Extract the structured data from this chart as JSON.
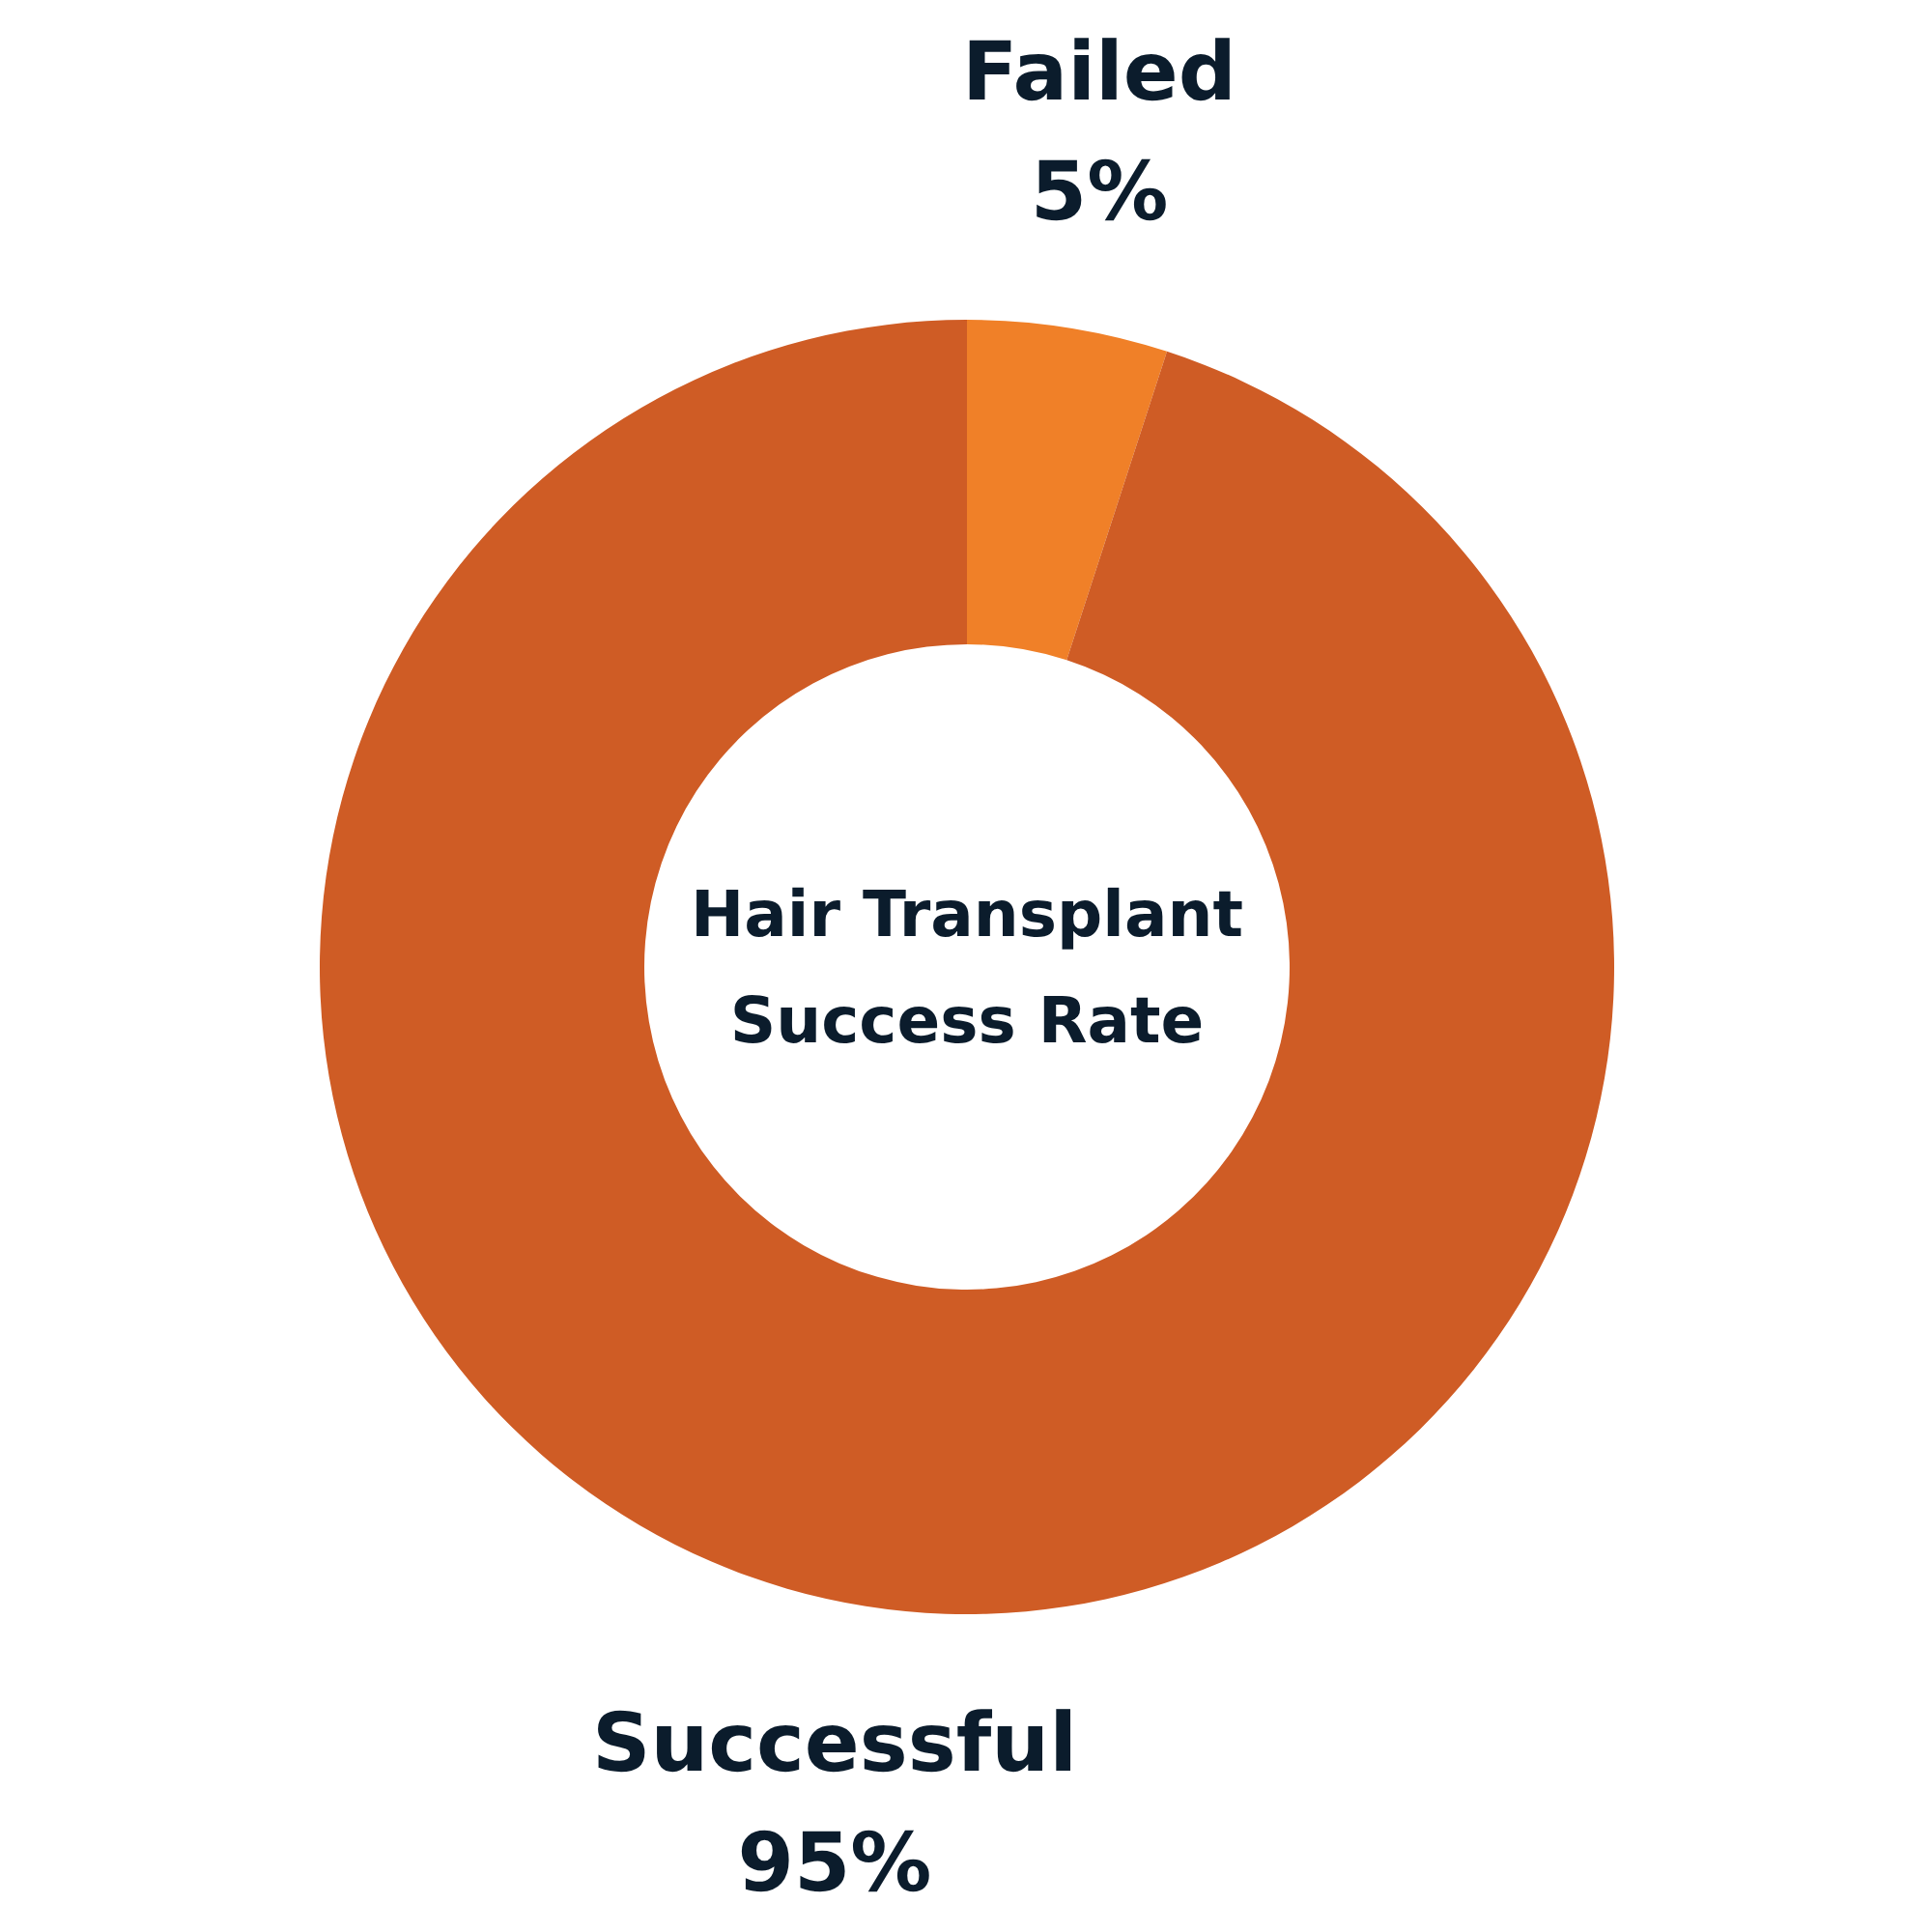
{
  "chart_data": {
    "type": "donut",
    "title": "Hair Transplant\nSuccess Rate",
    "categories": [
      "Failed",
      "Successful"
    ],
    "values": [
      5,
      95
    ],
    "colors": [
      "#f08028",
      "#cf5c25"
    ],
    "value_labels": [
      "5%",
      "95%"
    ]
  }
}
